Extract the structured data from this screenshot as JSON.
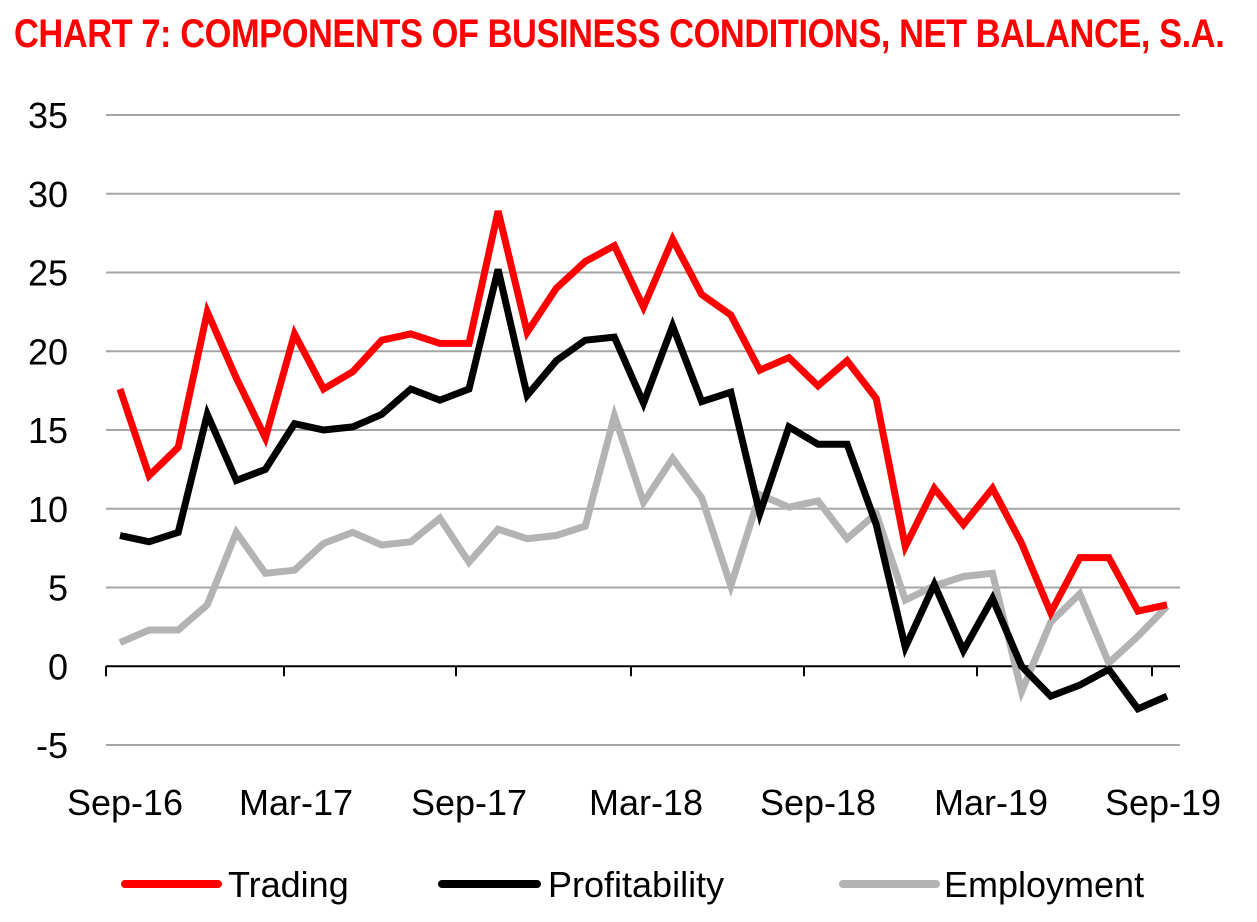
{
  "chart_data": {
    "type": "line",
    "title": "CHART 7: COMPONENTS OF BUSINESS CONDITIONS, NET BALANCE, S.A.",
    "xlabel": "",
    "ylabel": "",
    "ylim": [
      -5,
      35
    ],
    "yticks": [
      "35",
      "30",
      "25",
      "20",
      "15",
      "10",
      "5",
      "0",
      "-5"
    ],
    "ytick_values": [
      35,
      30,
      25,
      20,
      15,
      10,
      5,
      0,
      -5
    ],
    "xtick_labels": [
      "Sep-16",
      "Mar-17",
      "Sep-17",
      "Mar-18",
      "Sep-18",
      "Mar-19",
      "Sep-19"
    ],
    "xtick_month_index": [
      0,
      6,
      12,
      18,
      24,
      30,
      36
    ],
    "grid": true,
    "legend_position": "bottom",
    "series": [
      {
        "name": "Trading",
        "color": "#ff0000",
        "values": [
          17.6,
          12.1,
          13.9,
          22.5,
          18.3,
          14.5,
          21.1,
          17.6,
          18.7,
          20.7,
          21.1,
          20.5,
          20.5,
          28.9,
          21.2,
          24.0,
          25.7,
          26.7,
          22.8,
          27.1,
          23.6,
          22.3,
          18.8,
          19.6,
          17.8,
          19.4,
          17.0,
          7.6,
          11.3,
          9.0,
          11.3,
          7.8,
          3.4,
          6.9,
          6.9,
          3.5,
          3.9
        ]
      },
      {
        "name": "Profitability",
        "color": "#000000",
        "values": [
          8.3,
          7.9,
          8.5,
          16.0,
          11.8,
          12.5,
          15.4,
          15.0,
          15.2,
          16.0,
          17.6,
          16.9,
          17.6,
          25.2,
          17.2,
          19.4,
          20.7,
          20.9,
          16.7,
          21.6,
          16.8,
          17.4,
          9.7,
          15.2,
          14.1,
          14.1,
          9.0,
          1.2,
          5.2,
          1.0,
          4.3,
          0.0,
          -1.9,
          -1.2,
          -0.2,
          -2.7,
          -1.9
        ]
      },
      {
        "name": "Employment",
        "color": "#b3b3b3",
        "values": [
          1.5,
          2.3,
          2.3,
          3.9,
          8.5,
          5.9,
          6.1,
          7.8,
          8.5,
          7.7,
          7.9,
          9.4,
          6.6,
          8.7,
          8.1,
          8.3,
          8.9,
          15.9,
          10.4,
          13.2,
          10.7,
          5.1,
          10.9,
          10.1,
          10.5,
          8.1,
          9.7,
          4.2,
          5.1,
          5.7,
          5.9,
          -1.6,
          2.8,
          4.6,
          0.2,
          1.9,
          3.8
        ]
      }
    ]
  }
}
